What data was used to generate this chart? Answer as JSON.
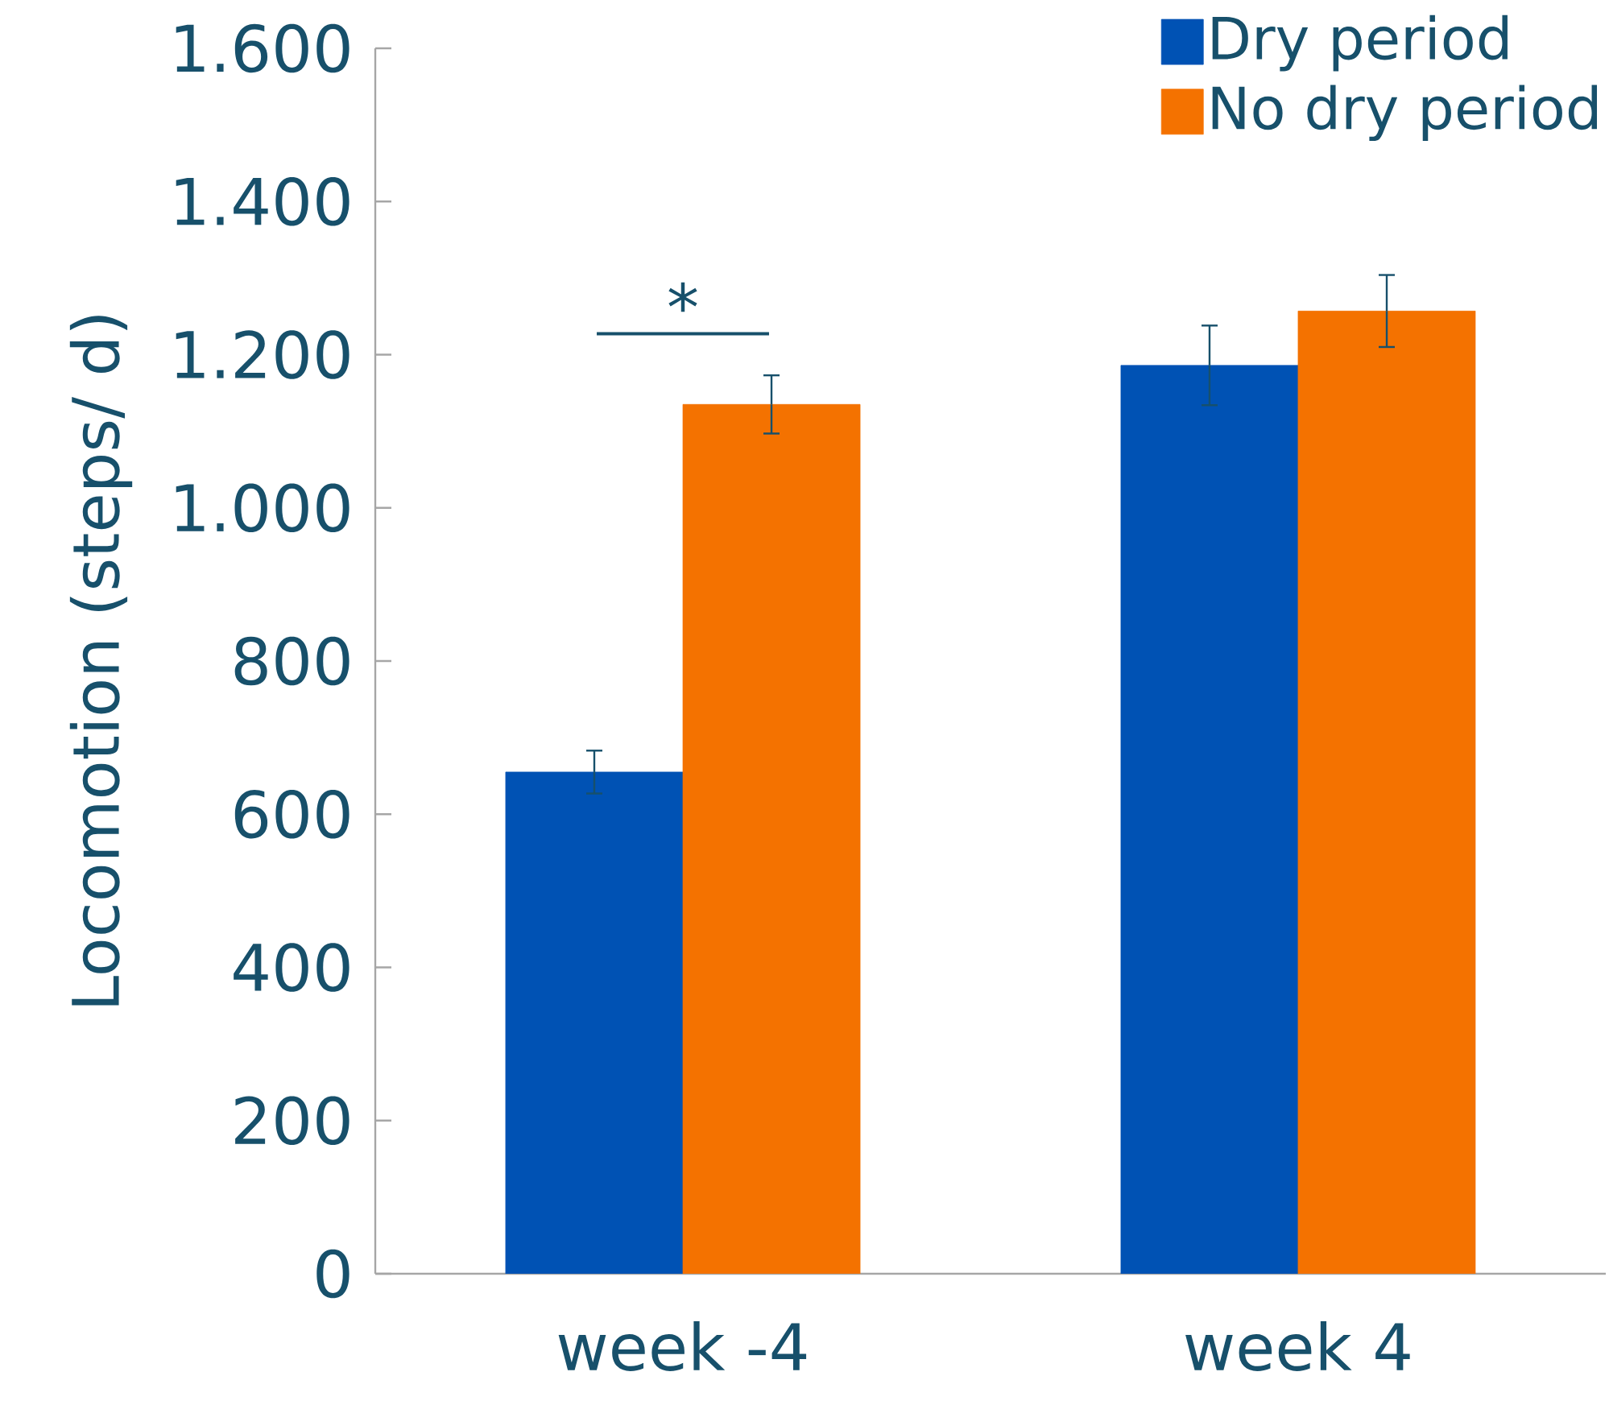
{
  "chart_data": {
    "type": "bar",
    "ylabel": "Locomotion (steps/ d)",
    "categories": [
      "week -4",
      "week 4"
    ],
    "series": [
      {
        "name": "Dry period",
        "color": "#0052b4",
        "values": [
          655,
          1186
        ],
        "errors": [
          28,
          52
        ]
      },
      {
        "name": "No dry period",
        "color": "#f47200",
        "values": [
          1135,
          1257
        ],
        "errors": [
          38,
          47
        ]
      }
    ],
    "ylim": [
      0,
      1600
    ],
    "yticks": [
      0,
      200,
      400,
      600,
      800,
      {
        "value": 1000,
        "label": "1.000"
      },
      {
        "value": 1200,
        "label": "1.200"
      },
      {
        "value": 1400,
        "label": "1.400"
      },
      {
        "value": 1600,
        "label": "1.600"
      }
    ],
    "grid": false,
    "legend": "top right",
    "annotations": [
      "*"
    ]
  }
}
